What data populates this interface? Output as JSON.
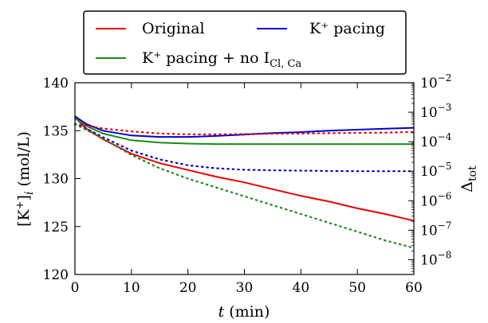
{
  "chart_data": {
    "type": "line",
    "xlabel": {
      "var": "t",
      "unit": " (min)"
    },
    "ylabel_left": {
      "pre": "[K",
      "sup": "+",
      "post": "]",
      "sub": "i",
      "unit": " (mol/L)"
    },
    "ylabel_right": {
      "main": "Δ",
      "sub": "tot"
    },
    "xlim": [
      0,
      60
    ],
    "ylim_left": [
      120,
      140
    ],
    "ylim_right_log10": [
      -8.5,
      -2
    ],
    "xticks": [
      0,
      10,
      20,
      30,
      40,
      50,
      60
    ],
    "yticks_left": [
      120,
      125,
      130,
      135,
      140
    ],
    "yticks_right": [
      {
        "exp": -8,
        "label": "10",
        "sup": "−8"
      },
      {
        "exp": -7,
        "label": "10",
        "sup": "−7"
      },
      {
        "exp": -6,
        "label": "10",
        "sup": "−6"
      },
      {
        "exp": -5,
        "label": "10",
        "sup": "−5"
      },
      {
        "exp": -4,
        "label": "10",
        "sup": "−4"
      },
      {
        "exp": -3,
        "label": "10",
        "sup": "−3"
      },
      {
        "exp": -2,
        "label": "10",
        "sup": "−2"
      }
    ],
    "legend": {
      "placement": "top-center",
      "entries": [
        {
          "text": "Original",
          "color": "#ee0000"
        },
        {
          "text": "K⁺ pacing",
          "color": "#0000cc"
        },
        {
          "text": "K⁺ pacing + no I",
          "sub": "Cl, Ca",
          "color": "#1a8a1a"
        }
      ]
    },
    "series": [
      {
        "name": "Original",
        "color": "#ee0000",
        "axis": "left",
        "style": "solid",
        "x": [
          0,
          2,
          5,
          10,
          15,
          20,
          25,
          30,
          35,
          40,
          45,
          50,
          55,
          60
        ],
        "y": [
          136.4,
          135.2,
          134.1,
          132.6,
          131.6,
          130.9,
          130.2,
          129.6,
          128.9,
          128.2,
          127.6,
          126.9,
          126.3,
          125.6
        ]
      },
      {
        "name": "K⁺ pacing",
        "color": "#0000cc",
        "axis": "left",
        "style": "solid",
        "x": [
          0,
          2,
          5,
          10,
          15,
          20,
          25,
          30,
          35,
          40,
          45,
          50,
          55,
          60
        ],
        "y": [
          136.5,
          135.7,
          135.0,
          134.5,
          134.35,
          134.35,
          134.45,
          134.6,
          134.75,
          134.85,
          135.0,
          135.1,
          135.2,
          135.3
        ]
      },
      {
        "name": "K⁺ pacing + no I Cl, Ca",
        "color": "#1a8a1a",
        "axis": "left",
        "style": "solid",
        "x": [
          0,
          2,
          5,
          10,
          15,
          20,
          25,
          30,
          35,
          40,
          45,
          50,
          55,
          60
        ],
        "y": [
          136.3,
          135.5,
          134.7,
          134.0,
          133.75,
          133.65,
          133.6,
          133.6,
          133.6,
          133.6,
          133.6,
          133.6,
          133.6,
          133.6
        ]
      },
      {
        "name": "Original",
        "color": "#ee0000",
        "axis": "right",
        "style": "dotted",
        "x": [
          0,
          2,
          5,
          10,
          15,
          20,
          25,
          30,
          35,
          40,
          45,
          50,
          55,
          60
        ],
        "log10": [
          -3.4,
          -3.45,
          -3.55,
          -3.65,
          -3.72,
          -3.75,
          -3.75,
          -3.74,
          -3.73,
          -3.72,
          -3.71,
          -3.7,
          -3.69,
          -3.67
        ]
      },
      {
        "name": "K⁺ pacing",
        "color": "#0000cc",
        "axis": "right",
        "style": "dotted",
        "x": [
          0,
          2,
          5,
          10,
          15,
          20,
          25,
          30,
          35,
          40,
          45,
          50,
          55,
          60
        ],
        "log10": [
          -3.4,
          -3.55,
          -3.85,
          -4.3,
          -4.6,
          -4.8,
          -4.9,
          -4.95,
          -4.97,
          -4.98,
          -4.99,
          -5.0,
          -5.0,
          -5.0
        ]
      },
      {
        "name": "K⁺ pacing + no I Cl, Ca",
        "color": "#1a8a1a",
        "axis": "right",
        "style": "dotted",
        "x": [
          0,
          2,
          5,
          10,
          15,
          20,
          25,
          30,
          35,
          40,
          45,
          50,
          55,
          60
        ],
        "log10": [
          -3.4,
          -3.6,
          -3.9,
          -4.45,
          -4.9,
          -5.25,
          -5.55,
          -5.85,
          -6.15,
          -6.45,
          -6.75,
          -7.05,
          -7.35,
          -7.6
        ]
      }
    ]
  }
}
